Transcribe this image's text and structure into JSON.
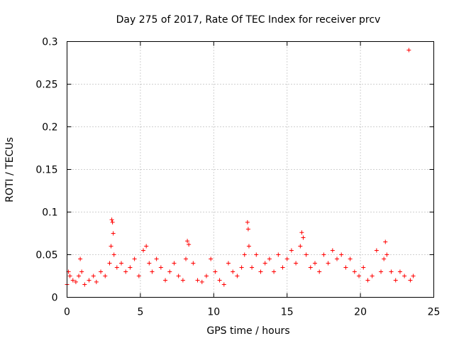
{
  "chart_data": {
    "type": "scatter",
    "title": "Day 275 of 2017, Rate Of TEC Index for receiver prcv",
    "xlabel": "GPS time / hours",
    "ylabel": "ROTI / TECUs",
    "xlim": [
      0,
      25
    ],
    "ylim": [
      0,
      0.3
    ],
    "xticks": [
      0,
      5,
      10,
      15,
      20,
      25
    ],
    "xtick_labels": [
      "0",
      "5",
      "10",
      "15",
      "20",
      "25"
    ],
    "yticks": [
      0,
      0.05,
      0.1,
      0.15,
      0.2,
      0.25,
      0.3
    ],
    "ytick_labels": [
      "0",
      "0.05",
      "0.1",
      "0.15",
      "0.2",
      "0.25",
      "0.3"
    ],
    "grid": true,
    "marker": "+",
    "color": "#ff0000",
    "series": [
      {
        "name": "ROTI",
        "x": [
          0.0,
          0.1,
          0.2,
          0.4,
          0.6,
          0.8,
          0.9,
          1.0,
          1.2,
          1.5,
          1.8,
          2.0,
          2.3,
          2.6,
          2.9,
          3.0,
          3.05,
          3.1,
          3.15,
          3.2,
          3.4,
          3.7,
          4.0,
          4.3,
          4.6,
          4.9,
          5.2,
          5.4,
          5.6,
          5.8,
          6.1,
          6.4,
          6.7,
          7.0,
          7.3,
          7.6,
          7.9,
          8.1,
          8.2,
          8.3,
          8.6,
          8.9,
          9.2,
          9.5,
          9.8,
          10.1,
          10.4,
          10.7,
          11.0,
          11.3,
          11.6,
          11.9,
          12.1,
          12.3,
          12.35,
          12.4,
          12.6,
          12.9,
          13.2,
          13.5,
          13.8,
          14.1,
          14.4,
          14.7,
          15.0,
          15.3,
          15.6,
          15.9,
          16.0,
          16.1,
          16.3,
          16.6,
          16.9,
          17.2,
          17.5,
          17.8,
          18.1,
          18.4,
          18.7,
          19.0,
          19.3,
          19.6,
          19.9,
          20.2,
          20.5,
          20.8,
          21.1,
          21.4,
          21.6,
          21.7,
          21.8,
          22.1,
          22.4,
          22.7,
          23.0,
          23.3,
          23.4,
          23.6
        ],
        "y": [
          0.015,
          0.03,
          0.025,
          0.02,
          0.018,
          0.025,
          0.045,
          0.03,
          0.015,
          0.02,
          0.025,
          0.018,
          0.03,
          0.025,
          0.04,
          0.06,
          0.091,
          0.088,
          0.075,
          0.05,
          0.035,
          0.04,
          0.03,
          0.035,
          0.045,
          0.025,
          0.055,
          0.06,
          0.04,
          0.03,
          0.045,
          0.035,
          0.02,
          0.03,
          0.04,
          0.025,
          0.02,
          0.045,
          0.066,
          0.062,
          0.04,
          0.02,
          0.018,
          0.025,
          0.045,
          0.03,
          0.02,
          0.015,
          0.04,
          0.03,
          0.025,
          0.035,
          0.05,
          0.088,
          0.08,
          0.06,
          0.035,
          0.05,
          0.03,
          0.04,
          0.045,
          0.03,
          0.05,
          0.035,
          0.045,
          0.055,
          0.04,
          0.06,
          0.076,
          0.07,
          0.05,
          0.035,
          0.04,
          0.03,
          0.05,
          0.04,
          0.055,
          0.045,
          0.05,
          0.035,
          0.045,
          0.03,
          0.025,
          0.035,
          0.02,
          0.025,
          0.055,
          0.03,
          0.045,
          0.065,
          0.05,
          0.03,
          0.02,
          0.03,
          0.025,
          0.29,
          0.02,
          0.025
        ]
      }
    ]
  }
}
